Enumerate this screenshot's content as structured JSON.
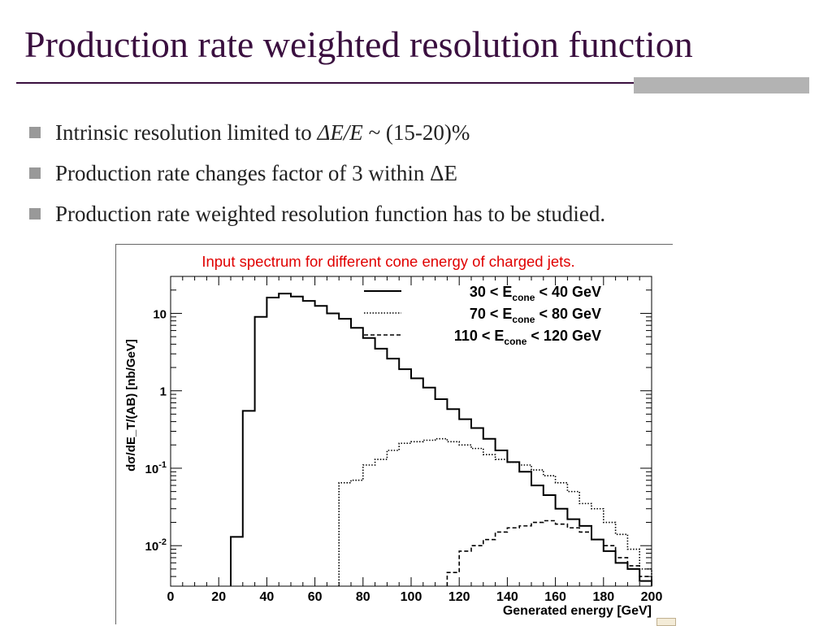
{
  "slide": {
    "title": "Production rate weighted resolution function",
    "bullets": [
      {
        "pre": "Intrinsic resolution limited to ",
        "em": "ΔE/E",
        "post": " ~ (15-20)%"
      },
      {
        "pre": "Production rate changes factor of 3 within ΔE",
        "em": "",
        "post": ""
      },
      {
        "pre": "Production rate weighted resolution function has to be studied.",
        "em": "",
        "post": ""
      }
    ]
  },
  "colors": {
    "title": "#3a0f3f",
    "plot_title": "#e00000",
    "bullet": "#999999",
    "rule_bar": "#b3b3b3"
  },
  "chart_data": {
    "type": "line",
    "style": "step-histogram",
    "title": "Input spectrum for different cone energy of charged jets.",
    "xlabel": "Generated energy [GeV]",
    "ylabel": "dσ/dE_T/(AB) [nb/GeV]",
    "xlim": [
      0,
      200
    ],
    "ylim": [
      0.003,
      30
    ],
    "y_scale": "log",
    "x_ticks": [
      0,
      20,
      40,
      60,
      80,
      100,
      120,
      140,
      160,
      180,
      200
    ],
    "y_ticks": [
      {
        "value": 10,
        "base": "10",
        "exp": ""
      },
      {
        "value": 1,
        "base": "1",
        "exp": ""
      },
      {
        "value": 0.1,
        "base": "10",
        "exp": "-1"
      },
      {
        "value": 0.01,
        "base": "10",
        "exp": "-2"
      }
    ],
    "legend_position": "top-right",
    "bin_edges": [
      0,
      5,
      10,
      15,
      20,
      25,
      30,
      35,
      40,
      45,
      50,
      55,
      60,
      65,
      70,
      75,
      80,
      85,
      90,
      95,
      100,
      105,
      110,
      115,
      120,
      125,
      130,
      135,
      140,
      145,
      150,
      155,
      160,
      165,
      170,
      175,
      180,
      185,
      190,
      195,
      200
    ],
    "series": [
      {
        "name": "30 < E_cone < 40 GeV",
        "lo": "30",
        "hi": "40",
        "sub": "cone",
        "dash": "solid",
        "values": [
          0,
          0,
          0,
          0,
          0,
          0.013,
          0.55,
          9,
          16,
          18,
          16.5,
          14.5,
          12.5,
          10,
          8.5,
          6.5,
          4.8,
          3.5,
          2.6,
          1.9,
          1.45,
          1.1,
          0.78,
          0.58,
          0.43,
          0.33,
          0.24,
          0.17,
          0.12,
          0.09,
          0.06,
          0.045,
          0.03,
          0.022,
          0.018,
          0.012,
          0.0085,
          0.006,
          0.005,
          0.0035
        ]
      },
      {
        "name": "70 < E_cone < 80 GeV",
        "lo": "70",
        "hi": "80",
        "sub": "cone",
        "dash": "dotted",
        "values": [
          0,
          0,
          0,
          0,
          0,
          0,
          0,
          0,
          0,
          0,
          0,
          0,
          0,
          0,
          0.065,
          0.07,
          0.11,
          0.13,
          0.17,
          0.21,
          0.22,
          0.23,
          0.24,
          0.22,
          0.2,
          0.18,
          0.15,
          0.13,
          0.12,
          0.11,
          0.095,
          0.08,
          0.065,
          0.05,
          0.035,
          0.03,
          0.02,
          0.014,
          0.009,
          0.005
        ]
      },
      {
        "name": "110 < E_cone < 120 GeV",
        "lo": "110",
        "hi": "120",
        "sub": "cone",
        "dash": "dashed",
        "values": [
          0,
          0,
          0,
          0,
          0,
          0,
          0,
          0,
          0,
          0,
          0,
          0,
          0,
          0,
          0,
          0,
          0,
          0,
          0,
          0,
          0,
          0,
          0,
          0.0045,
          0.0085,
          0.01,
          0.012,
          0.015,
          0.017,
          0.018,
          0.02,
          0.021,
          0.019,
          0.017,
          0.015,
          0.012,
          0.01,
          0.007,
          0.0055,
          0.004
        ]
      }
    ]
  }
}
